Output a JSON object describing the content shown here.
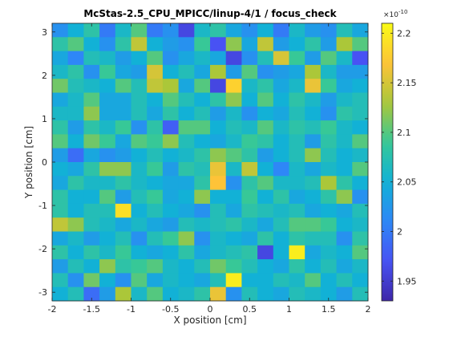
{
  "chart_data": {
    "type": "heatmap",
    "title": "McStas-2.5_CPU_MPICC/linup-4/1 / focus_check",
    "xlabel": "X position [cm]",
    "ylabel": "Y position [cm]",
    "xlim": [
      -2,
      2
    ],
    "ylim": [
      -3.2,
      3.2
    ],
    "x_ticks": [
      "-2",
      "-1.5",
      "-1",
      "-0.5",
      "0",
      "0.5",
      "1",
      "1.5",
      "2"
    ],
    "y_ticks": [
      "-3",
      "-2",
      "-1",
      "0",
      "1",
      "2",
      "3"
    ],
    "colorbar": {
      "min": 1.93,
      "max": 2.21,
      "ticks": [
        "1.95",
        "2",
        "2.05",
        "2.1",
        "2.15",
        "2.2"
      ],
      "exponent_label": "×10",
      "exponent_power": "-10",
      "colormap": "parula"
    },
    "grid_size": [
      20,
      20
    ],
    "values": [
      [
        2.02,
        2.05,
        2.08,
        2.0,
        2.06,
        2.1,
        2.0,
        2.02,
        1.96,
        2.06,
        2.08,
        2.04,
        2.02,
        2.05,
        2.0,
        2.06,
        2.03,
        2.02,
        2.07,
        2.04
      ],
      [
        2.08,
        2.1,
        2.05,
        2.02,
        2.08,
        2.14,
        2.05,
        2.03,
        2.02,
        2.09,
        1.97,
        2.12,
        2.04,
        2.14,
        2.03,
        2.05,
        2.08,
        2.03,
        2.13,
        2.1
      ],
      [
        2.04,
        2.01,
        2.07,
        2.06,
        2.03,
        2.05,
        2.1,
        2.02,
        2.04,
        2.06,
        2.04,
        1.96,
        2.02,
        2.07,
        2.15,
        2.09,
        2.03,
        2.1,
        2.06,
        1.97
      ],
      [
        2.06,
        2.08,
        2.02,
        2.09,
        2.04,
        2.03,
        2.15,
        2.05,
        2.07,
        2.04,
        2.13,
        2.03,
        2.1,
        2.02,
        2.03,
        2.04,
        2.13,
        2.06,
        2.03,
        2.03
      ],
      [
        2.11,
        2.07,
        2.06,
        2.05,
        2.1,
        2.07,
        2.14,
        2.13,
        2.04,
        2.1,
        1.96,
        2.18,
        2.06,
        2.08,
        2.04,
        2.06,
        2.16,
        2.09,
        2.04,
        2.05
      ],
      [
        2.04,
        2.06,
        2.1,
        2.04,
        2.04,
        2.07,
        2.05,
        2.1,
        2.07,
        2.05,
        2.08,
        2.12,
        2.05,
        2.1,
        2.05,
        2.08,
        2.06,
        2.03,
        2.06,
        2.07
      ],
      [
        2.06,
        2.06,
        2.12,
        2.04,
        2.04,
        2.07,
        2.04,
        2.08,
        2.05,
        2.07,
        2.03,
        2.06,
        2.02,
        2.05,
        2.04,
        2.07,
        2.05,
        2.02,
        2.08,
        2.07
      ],
      [
        2.08,
        2.03,
        2.08,
        2.06,
        2.09,
        2.02,
        2.08,
        1.98,
        2.1,
        2.1,
        2.05,
        2.07,
        2.06,
        2.1,
        2.06,
        2.08,
        2.07,
        2.09,
        2.06,
        2.05
      ],
      [
        2.1,
        2.05,
        2.11,
        2.09,
        2.04,
        2.1,
        2.09,
        2.12,
        2.07,
        2.05,
        2.04,
        2.06,
        2.09,
        2.08,
        2.05,
        2.07,
        2.03,
        2.08,
        2.06,
        2.1
      ],
      [
        2.03,
        1.99,
        2.04,
        2.02,
        2.03,
        2.05,
        2.07,
        2.05,
        2.06,
        2.08,
        2.12,
        2.1,
        2.08,
        2.03,
        2.05,
        2.07,
        2.12,
        2.07,
        2.05,
        2.06
      ],
      [
        2.05,
        2.04,
        2.08,
        2.12,
        2.12,
        2.06,
        2.09,
        2.03,
        2.08,
        2.07,
        2.16,
        2.06,
        2.14,
        2.05,
        2.01,
        2.06,
        2.04,
        2.06,
        2.05,
        2.1
      ],
      [
        2.04,
        2.08,
        2.06,
        2.06,
        2.08,
        2.06,
        2.05,
        2.04,
        2.04,
        2.08,
        2.17,
        2.02,
        2.08,
        2.1,
        2.06,
        2.06,
        2.07,
        2.13,
        2.08,
        2.05
      ],
      [
        2.08,
        2.05,
        2.05,
        2.1,
        2.03,
        2.07,
        2.09,
        2.04,
        2.05,
        2.12,
        2.05,
        2.05,
        2.09,
        2.05,
        2.08,
        2.04,
        2.05,
        2.08,
        2.12,
        2.02
      ],
      [
        2.08,
        2.05,
        2.07,
        2.07,
        2.19,
        2.05,
        2.07,
        2.05,
        2.04,
        2.02,
        2.07,
        2.04,
        2.08,
        2.07,
        2.06,
        2.07,
        2.04,
        2.05,
        2.04,
        2.07
      ],
      [
        2.14,
        2.12,
        2.07,
        2.06,
        2.04,
        2.06,
        2.04,
        2.03,
        2.07,
        2.06,
        2.07,
        2.08,
        2.06,
        2.04,
        2.07,
        2.1,
        2.1,
        2.09,
        2.05,
        2.06
      ],
      [
        2.04,
        2.06,
        2.03,
        2.05,
        2.07,
        2.02,
        2.07,
        2.09,
        2.12,
        2.02,
        2.06,
        2.05,
        2.04,
        2.08,
        2.05,
        2.08,
        2.07,
        2.07,
        2.02,
        2.08
      ],
      [
        2.08,
        2.05,
        2.08,
        2.06,
        2.09,
        2.05,
        2.04,
        2.05,
        2.08,
        2.04,
        2.06,
        2.07,
        2.08,
        1.96,
        2.05,
        2.2,
        2.04,
        2.06,
        2.05,
        2.1
      ],
      [
        2.03,
        2.07,
        2.05,
        2.12,
        2.08,
        2.09,
        2.1,
        2.06,
        2.05,
        2.07,
        2.11,
        2.09,
        2.07,
        2.05,
        2.04,
        2.08,
        2.05,
        2.07,
        2.04,
        2.06
      ],
      [
        2.07,
        2.02,
        2.11,
        2.05,
        2.02,
        2.1,
        2.04,
        2.06,
        2.05,
        2.04,
        2.07,
        2.2,
        2.05,
        2.05,
        2.07,
        2.06,
        2.1,
        2.05,
        2.07,
        2.05
      ],
      [
        2.05,
        2.07,
        1.99,
        2.03,
        2.13,
        2.06,
        2.1,
        2.05,
        2.06,
        2.08,
        2.16,
        2.02,
        2.07,
        2.05,
        2.04,
        2.07,
        2.06,
        2.05,
        2.03,
        2.07
      ]
    ]
  }
}
